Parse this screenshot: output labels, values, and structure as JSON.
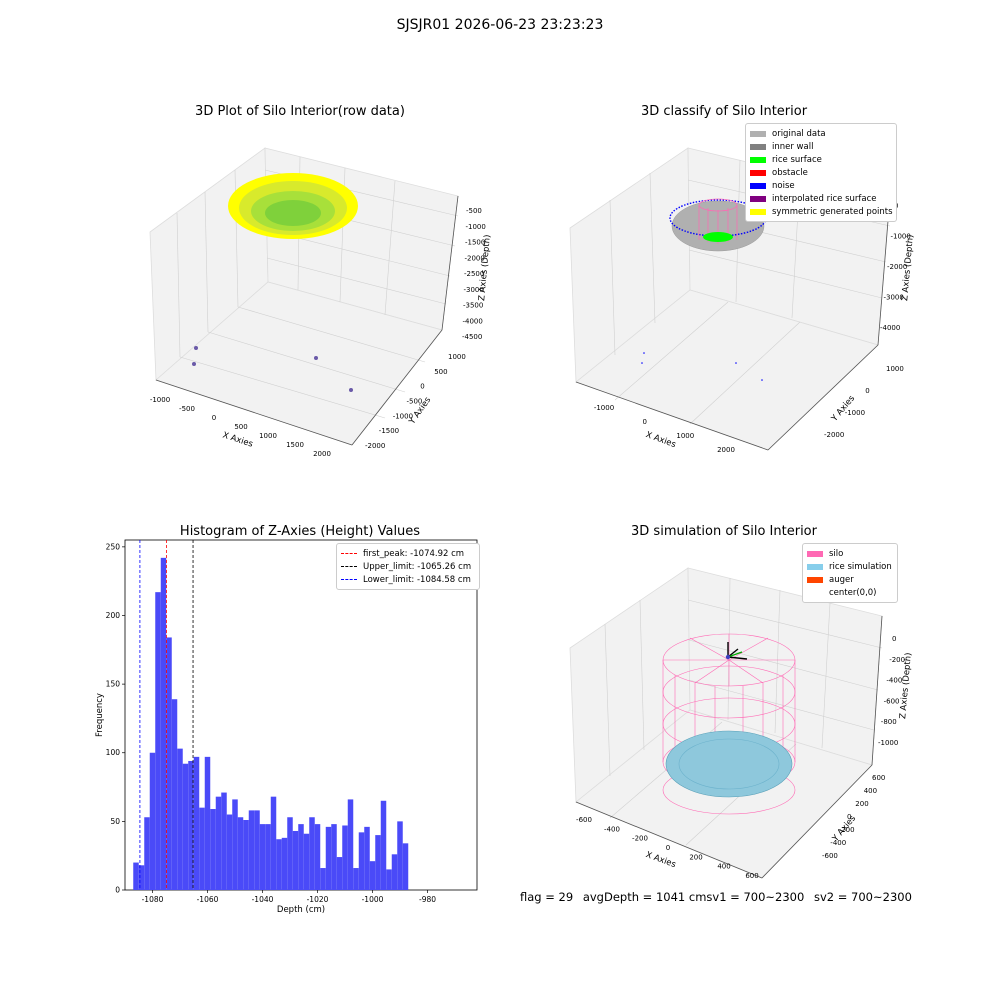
{
  "suptitle": "SJSJR01 2026-06-23 23:23:23",
  "chart_data": [
    {
      "type": "scatter3d",
      "title": "3D Plot of Silo Interior(row data)",
      "xlabel": "X Axies",
      "ylabel": "Y Axies",
      "zlabel": "Z Axies (Depth)",
      "xticks": [
        "-1000",
        "-500",
        "0",
        "500",
        "1000",
        "1500",
        "2000"
      ],
      "yticks": [
        "1000",
        "500",
        "0",
        "-500",
        "-1000",
        "-1500",
        "-2000"
      ],
      "zticks": [
        "-500",
        "-1000",
        "-1500",
        "-2000",
        "-2500",
        "-3000",
        "-3500",
        "-4000",
        "-4500"
      ],
      "colors": {
        "surface_edge": "#ffff00",
        "surface_center": "#7fd13b",
        "points": "#6a5aa8"
      }
    },
    {
      "type": "scatter3d",
      "title": "3D classify of Silo Interior",
      "xlabel": "X Axies",
      "ylabel": "Y Axies",
      "zlabel": "Z Axies (Depth)",
      "xticks": [
        "-1000",
        "0",
        "1000",
        "2000"
      ],
      "yticks": [
        "1000",
        "0",
        "-1000",
        "-2000"
      ],
      "zticks": [
        "0",
        "-1000",
        "-2000",
        "-3000",
        "-4000"
      ],
      "legend": [
        {
          "label": "original data",
          "color": "#b0b0b0"
        },
        {
          "label": "inner wall",
          "color": "#808080"
        },
        {
          "label": "rice surface",
          "color": "#00ff00"
        },
        {
          "label": "obstacle",
          "color": "#ff0000"
        },
        {
          "label": "noise",
          "color": "#0000ff"
        },
        {
          "label": "interpolated rice surface",
          "color": "#800080"
        },
        {
          "label": "symmetric generated points",
          "color": "#ffff00"
        }
      ]
    },
    {
      "type": "bar",
      "title": "Histogram of Z-Axies (Height) Values",
      "xlabel": "Depth (cm)",
      "ylabel": "Frequency",
      "xlim": [
        -1090,
        -962
      ],
      "ylim": [
        0,
        255
      ],
      "xticks": [
        -1080,
        -1060,
        -1040,
        -1020,
        -1000,
        -980
      ],
      "yticks": [
        0,
        50,
        100,
        150,
        200,
        250
      ],
      "bin_start": -1087.0,
      "bin_width": 2.0,
      "values": [
        20,
        18,
        53,
        100,
        217,
        242,
        184,
        139,
        103,
        92,
        94,
        97,
        60,
        97,
        59,
        68,
        71,
        55,
        66,
        53,
        51,
        58,
        58,
        48,
        48,
        68,
        37,
        38,
        53,
        43,
        48,
        41,
        53,
        48,
        16,
        46,
        48,
        24,
        47,
        66,
        16,
        42,
        46,
        21,
        40,
        65,
        15,
        26,
        50,
        34
      ],
      "bar_color": "#4a4af8",
      "vlines": [
        {
          "label": "first_peak: -1074.92 cm",
          "x": -1074.92,
          "color": "#ff0000"
        },
        {
          "label": "Upper_limit: -1065.26 cm",
          "x": -1065.26,
          "color": "#000000"
        },
        {
          "label": "Lower_limit: -1084.58 cm",
          "x": -1084.58,
          "color": "#0000ff"
        }
      ]
    },
    {
      "type": "surface3d",
      "title": "3D simulation of Silo Interior",
      "xlabel": "X Axies",
      "ylabel": "Y Axies",
      "zlabel": "Z Axies (Depth)",
      "xticks": [
        "-600",
        "-400",
        "-200",
        "0",
        "200",
        "400",
        "600"
      ],
      "yticks": [
        "600",
        "400",
        "200",
        "0",
        "-200",
        "-400",
        "-600"
      ],
      "zticks": [
        "0",
        "-200",
        "-400",
        "-600",
        "-800",
        "-1000"
      ],
      "legend": [
        {
          "label": "silo",
          "color": "#ff69b4"
        },
        {
          "label": "rice simulation",
          "color": "#87ceeb"
        },
        {
          "label": "auger",
          "color": "#ff4500"
        },
        {
          "label": "center(0,0)",
          "color": ""
        }
      ]
    }
  ],
  "footer": {
    "flag": "flag = 29",
    "avg": "avgDepth = 1041 cm",
    "sv1": "sv1 = 700~2300",
    "sv2": "sv2 = 700~2300"
  }
}
